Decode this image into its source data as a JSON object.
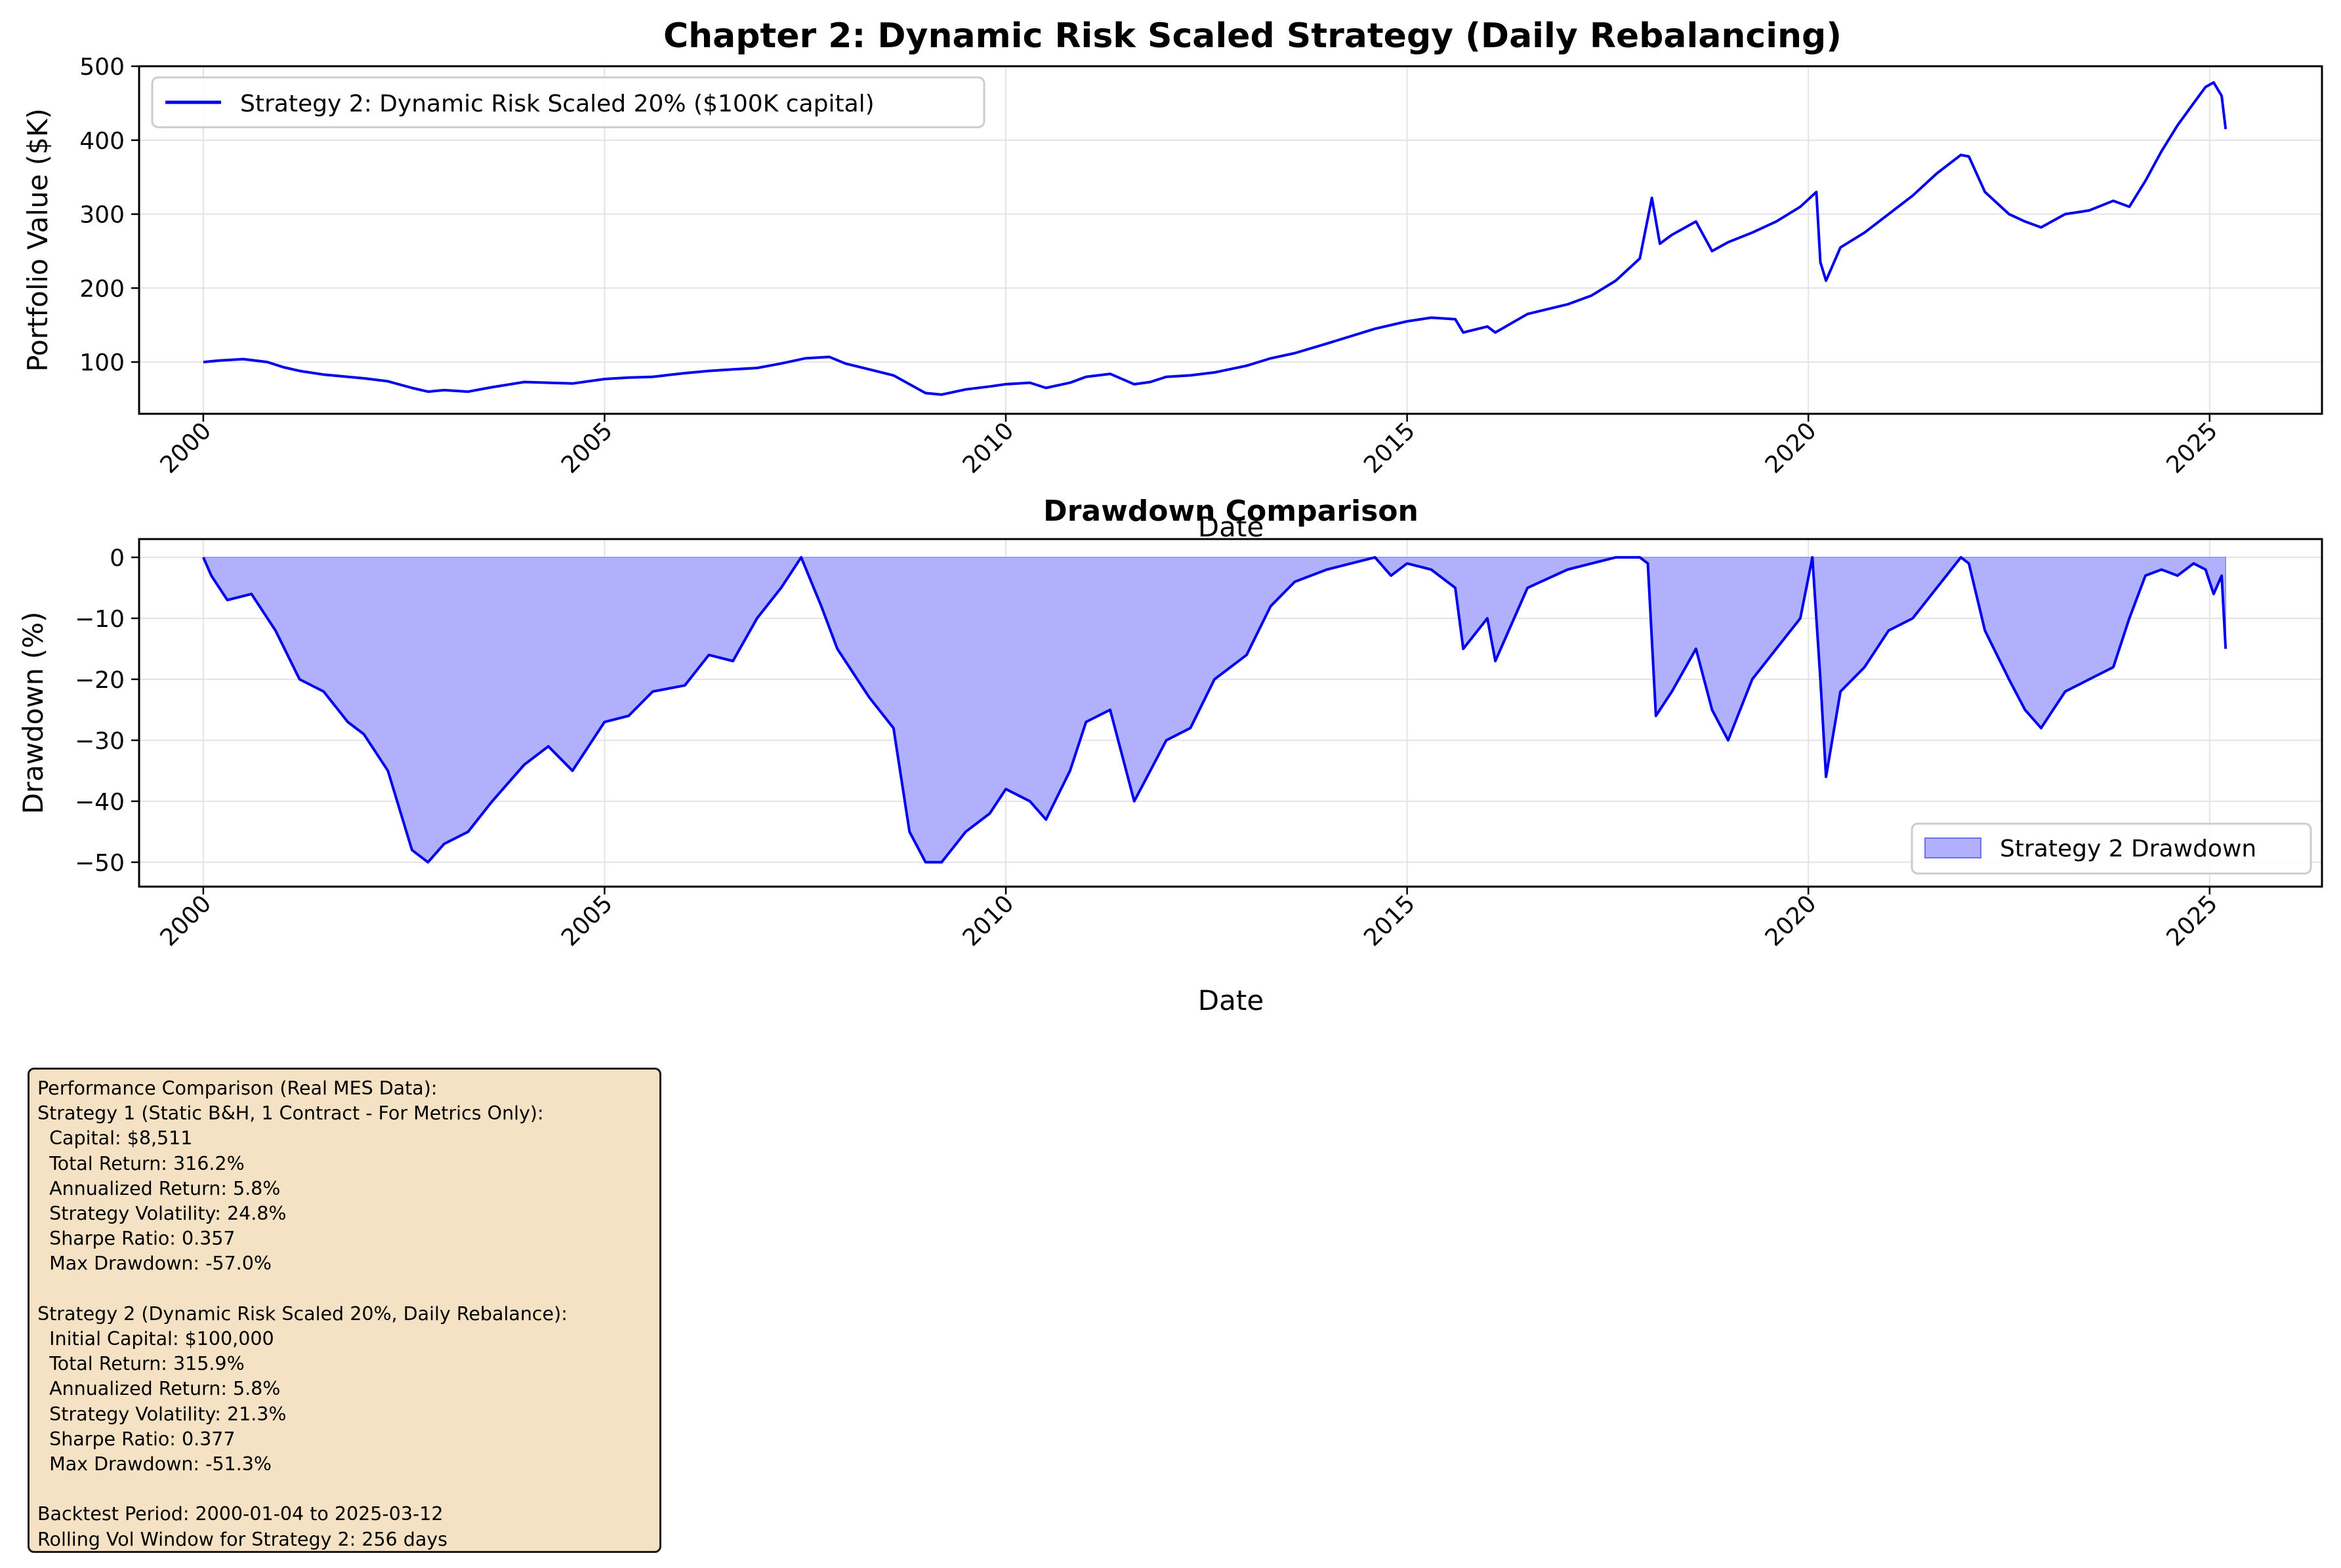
{
  "chart_data": [
    {
      "type": "line",
      "title": "Chapter 2: Dynamic Risk Scaled Strategy (Daily Rebalancing)",
      "xlabel": "Date",
      "ylabel": "Portfolio Value ($K)",
      "xlim": [
        1999.2,
        2026.4
      ],
      "ylim": [
        30,
        500
      ],
      "xticks": [
        "2000",
        "2005",
        "2010",
        "2015",
        "2020",
        "2025"
      ],
      "yticks": [
        "100",
        "200",
        "300",
        "400",
        "500"
      ],
      "grid": true,
      "legend": "top-left",
      "series": [
        {
          "name": "Strategy 2: Dynamic Risk Scaled 20% ($100K capital)",
          "color": "#0000ee",
          "x": [
            2000.0,
            2000.2,
            2000.5,
            2000.8,
            2001.0,
            2001.2,
            2001.5,
            2001.8,
            2002.0,
            2002.3,
            2002.6,
            2002.8,
            2003.0,
            2003.3,
            2003.6,
            2004.0,
            2004.3,
            2004.6,
            2005.0,
            2005.3,
            2005.6,
            2006.0,
            2006.3,
            2006.6,
            2006.9,
            2007.2,
            2007.5,
            2007.8,
            2008.0,
            2008.3,
            2008.6,
            2008.8,
            2009.0,
            2009.2,
            2009.5,
            2009.8,
            2010.0,
            2010.3,
            2010.5,
            2010.8,
            2011.0,
            2011.3,
            2011.6,
            2011.8,
            2012.0,
            2012.3,
            2012.6,
            2013.0,
            2013.3,
            2013.6,
            2014.0,
            2014.3,
            2014.6,
            2015.0,
            2015.3,
            2015.6,
            2015.7,
            2016.0,
            2016.1,
            2016.5,
            2017.0,
            2017.3,
            2017.6,
            2017.9,
            2018.05,
            2018.15,
            2018.3,
            2018.6,
            2018.8,
            2019.0,
            2019.3,
            2019.6,
            2019.9,
            2020.1,
            2020.15,
            2020.22,
            2020.4,
            2020.7,
            2021.0,
            2021.3,
            2021.6,
            2021.9,
            2022.0,
            2022.2,
            2022.5,
            2022.7,
            2022.9,
            2023.2,
            2023.5,
            2023.8,
            2024.0,
            2024.2,
            2024.4,
            2024.6,
            2024.8,
            2024.95,
            2025.05,
            2025.15,
            2025.2
          ],
          "values": [
            100,
            102,
            104,
            100,
            93,
            88,
            83,
            80,
            78,
            74,
            65,
            60,
            62,
            60,
            66,
            73,
            72,
            71,
            77,
            79,
            80,
            85,
            88,
            90,
            92,
            98,
            105,
            107,
            98,
            90,
            82,
            70,
            58,
            56,
            63,
            67,
            70,
            72,
            65,
            72,
            80,
            84,
            70,
            73,
            80,
            82,
            86,
            95,
            105,
            112,
            125,
            135,
            145,
            155,
            160,
            158,
            140,
            148,
            140,
            165,
            178,
            190,
            210,
            240,
            322,
            260,
            272,
            290,
            250,
            262,
            275,
            290,
            310,
            330,
            235,
            210,
            255,
            275,
            300,
            325,
            355,
            380,
            378,
            330,
            300,
            290,
            282,
            300,
            305,
            318,
            310,
            345,
            385,
            420,
            450,
            472,
            478,
            460,
            415
          ]
        }
      ]
    },
    {
      "type": "area",
      "title": "Drawdown Comparison",
      "xlabel": "Date",
      "ylabel": "Drawdown (%)",
      "xlim": [
        1999.2,
        2026.4
      ],
      "ylim": [
        -54,
        3
      ],
      "xticks": [
        "2000",
        "2005",
        "2010",
        "2015",
        "2020",
        "2025"
      ],
      "yticks": [
        "0",
        "−10",
        "−20",
        "−30",
        "−40",
        "−50"
      ],
      "grid": true,
      "legend": "bottom-right",
      "series": [
        {
          "name": "Strategy 2 Drawdown",
          "color": "#0000ee",
          "fill": "#b0b0fc",
          "x": [
            2000.0,
            2000.1,
            2000.3,
            2000.6,
            2000.9,
            2001.2,
            2001.5,
            2001.8,
            2002.0,
            2002.3,
            2002.6,
            2002.8,
            2003.0,
            2003.3,
            2003.6,
            2004.0,
            2004.3,
            2004.6,
            2005.0,
            2005.3,
            2005.6,
            2006.0,
            2006.3,
            2006.6,
            2006.9,
            2007.2,
            2007.45,
            2007.7,
            2007.9,
            2008.1,
            2008.3,
            2008.6,
            2008.8,
            2009.0,
            2009.2,
            2009.5,
            2009.8,
            2010.0,
            2010.3,
            2010.5,
            2010.8,
            2011.0,
            2011.3,
            2011.6,
            2011.8,
            2012.0,
            2012.3,
            2012.6,
            2013.0,
            2013.3,
            2013.6,
            2014.0,
            2014.3,
            2014.6,
            2014.8,
            2015.0,
            2015.3,
            2015.6,
            2015.7,
            2016.0,
            2016.1,
            2016.5,
            2017.0,
            2017.3,
            2017.6,
            2017.9,
            2018.0,
            2018.1,
            2018.3,
            2018.6,
            2018.8,
            2019.0,
            2019.3,
            2019.6,
            2019.9,
            2020.05,
            2020.15,
            2020.22,
            2020.4,
            2020.7,
            2021.0,
            2021.3,
            2021.6,
            2021.9,
            2022.0,
            2022.2,
            2022.5,
            2022.7,
            2022.9,
            2023.2,
            2023.5,
            2023.8,
            2024.0,
            2024.2,
            2024.4,
            2024.6,
            2024.8,
            2024.95,
            2025.05,
            2025.15,
            2025.2
          ],
          "values": [
            0,
            -3,
            -7,
            -6,
            -12,
            -20,
            -22,
            -27,
            -29,
            -35,
            -48,
            -50,
            -47,
            -45,
            -40,
            -34,
            -31,
            -35,
            -27,
            -26,
            -22,
            -21,
            -16,
            -17,
            -10,
            -5,
            0,
            -8,
            -15,
            -19,
            -23,
            -28,
            -45,
            -50,
            -50,
            -45,
            -42,
            -38,
            -40,
            -43,
            -35,
            -27,
            -25,
            -40,
            -35,
            -30,
            -28,
            -20,
            -16,
            -8,
            -4,
            -2,
            -1,
            0,
            -3,
            -1,
            -2,
            -5,
            -15,
            -10,
            -17,
            -5,
            -2,
            -1,
            0,
            0,
            -1,
            -26,
            -22,
            -15,
            -25,
            -30,
            -20,
            -15,
            -10,
            0,
            -20,
            -36,
            -22,
            -18,
            -12,
            -10,
            -5,
            0,
            -1,
            -12,
            -20,
            -25,
            -28,
            -22,
            -20,
            -18,
            -10,
            -3,
            -2,
            -3,
            -1,
            -2,
            -6,
            -3,
            -15
          ]
        }
      ]
    }
  ],
  "stats": {
    "lines": [
      "Performance Comparison (Real MES Data):",
      "Strategy 1 (Static B&H, 1 Contract - For Metrics Only):",
      "  Capital: $8,511",
      "  Total Return: 316.2%",
      "  Annualized Return: 5.8%",
      "  Strategy Volatility: 24.8%",
      "  Sharpe Ratio: 0.357",
      "  Max Drawdown: -57.0%",
      "",
      "Strategy 2 (Dynamic Risk Scaled 20%, Daily Rebalance):",
      "  Initial Capital: $100,000",
      "  Total Return: 315.9%",
      "  Annualized Return: 5.8%",
      "  Strategy Volatility: 21.3%",
      "  Sharpe Ratio: 0.377",
      "  Max Drawdown: -51.3%",
      "",
      "Backtest Period: 2000-01-04 to 2025-03-12",
      "Rolling Vol Window for Strategy 2: 256 days"
    ]
  }
}
